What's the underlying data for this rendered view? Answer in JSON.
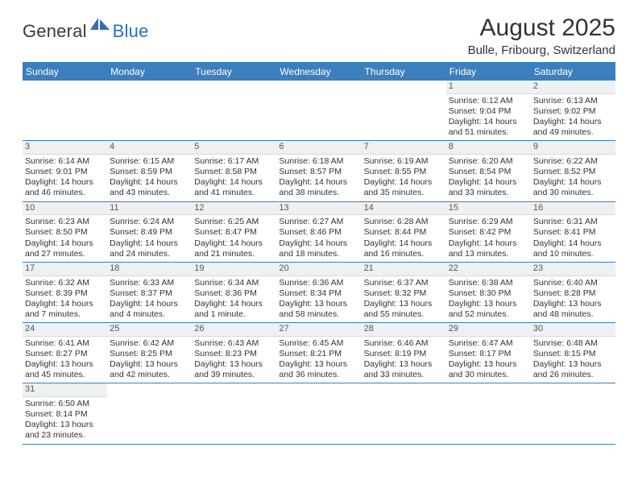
{
  "brand": {
    "general": "General",
    "blue": "Blue"
  },
  "title": "August 2025",
  "location": "Bulle, Fribourg, Switzerland",
  "colors": {
    "header_bar": "#3b7fbf",
    "brand_blue": "#2f6fb0",
    "text": "#333333",
    "daynum_bg": "#eef0f1",
    "divider": "#3b7fbf",
    "background": "#ffffff"
  },
  "weekdays": [
    "Sunday",
    "Monday",
    "Tuesday",
    "Wednesday",
    "Thursday",
    "Friday",
    "Saturday"
  ],
  "weeks": [
    [
      {
        "empty": true
      },
      {
        "empty": true
      },
      {
        "empty": true
      },
      {
        "empty": true
      },
      {
        "empty": true
      },
      {
        "day": "1",
        "sunrise": "Sunrise: 6:12 AM",
        "sunset": "Sunset: 9:04 PM",
        "daylight1": "Daylight: 14 hours",
        "daylight2": "and 51 minutes."
      },
      {
        "day": "2",
        "sunrise": "Sunrise: 6:13 AM",
        "sunset": "Sunset: 9:02 PM",
        "daylight1": "Daylight: 14 hours",
        "daylight2": "and 49 minutes."
      }
    ],
    [
      {
        "day": "3",
        "sunrise": "Sunrise: 6:14 AM",
        "sunset": "Sunset: 9:01 PM",
        "daylight1": "Daylight: 14 hours",
        "daylight2": "and 46 minutes."
      },
      {
        "day": "4",
        "sunrise": "Sunrise: 6:15 AM",
        "sunset": "Sunset: 8:59 PM",
        "daylight1": "Daylight: 14 hours",
        "daylight2": "and 43 minutes."
      },
      {
        "day": "5",
        "sunrise": "Sunrise: 6:17 AM",
        "sunset": "Sunset: 8:58 PM",
        "daylight1": "Daylight: 14 hours",
        "daylight2": "and 41 minutes."
      },
      {
        "day": "6",
        "sunrise": "Sunrise: 6:18 AM",
        "sunset": "Sunset: 8:57 PM",
        "daylight1": "Daylight: 14 hours",
        "daylight2": "and 38 minutes."
      },
      {
        "day": "7",
        "sunrise": "Sunrise: 6:19 AM",
        "sunset": "Sunset: 8:55 PM",
        "daylight1": "Daylight: 14 hours",
        "daylight2": "and 35 minutes."
      },
      {
        "day": "8",
        "sunrise": "Sunrise: 6:20 AM",
        "sunset": "Sunset: 8:54 PM",
        "daylight1": "Daylight: 14 hours",
        "daylight2": "and 33 minutes."
      },
      {
        "day": "9",
        "sunrise": "Sunrise: 6:22 AM",
        "sunset": "Sunset: 8:52 PM",
        "daylight1": "Daylight: 14 hours",
        "daylight2": "and 30 minutes."
      }
    ],
    [
      {
        "day": "10",
        "sunrise": "Sunrise: 6:23 AM",
        "sunset": "Sunset: 8:50 PM",
        "daylight1": "Daylight: 14 hours",
        "daylight2": "and 27 minutes."
      },
      {
        "day": "11",
        "sunrise": "Sunrise: 6:24 AM",
        "sunset": "Sunset: 8:49 PM",
        "daylight1": "Daylight: 14 hours",
        "daylight2": "and 24 minutes."
      },
      {
        "day": "12",
        "sunrise": "Sunrise: 6:25 AM",
        "sunset": "Sunset: 8:47 PM",
        "daylight1": "Daylight: 14 hours",
        "daylight2": "and 21 minutes."
      },
      {
        "day": "13",
        "sunrise": "Sunrise: 6:27 AM",
        "sunset": "Sunset: 8:46 PM",
        "daylight1": "Daylight: 14 hours",
        "daylight2": "and 18 minutes."
      },
      {
        "day": "14",
        "sunrise": "Sunrise: 6:28 AM",
        "sunset": "Sunset: 8:44 PM",
        "daylight1": "Daylight: 14 hours",
        "daylight2": "and 16 minutes."
      },
      {
        "day": "15",
        "sunrise": "Sunrise: 6:29 AM",
        "sunset": "Sunset: 8:42 PM",
        "daylight1": "Daylight: 14 hours",
        "daylight2": "and 13 minutes."
      },
      {
        "day": "16",
        "sunrise": "Sunrise: 6:31 AM",
        "sunset": "Sunset: 8:41 PM",
        "daylight1": "Daylight: 14 hours",
        "daylight2": "and 10 minutes."
      }
    ],
    [
      {
        "day": "17",
        "sunrise": "Sunrise: 6:32 AM",
        "sunset": "Sunset: 8:39 PM",
        "daylight1": "Daylight: 14 hours",
        "daylight2": "and 7 minutes."
      },
      {
        "day": "18",
        "sunrise": "Sunrise: 6:33 AM",
        "sunset": "Sunset: 8:37 PM",
        "daylight1": "Daylight: 14 hours",
        "daylight2": "and 4 minutes."
      },
      {
        "day": "19",
        "sunrise": "Sunrise: 6:34 AM",
        "sunset": "Sunset: 8:36 PM",
        "daylight1": "Daylight: 14 hours",
        "daylight2": "and 1 minute."
      },
      {
        "day": "20",
        "sunrise": "Sunrise: 6:36 AM",
        "sunset": "Sunset: 8:34 PM",
        "daylight1": "Daylight: 13 hours",
        "daylight2": "and 58 minutes."
      },
      {
        "day": "21",
        "sunrise": "Sunrise: 6:37 AM",
        "sunset": "Sunset: 8:32 PM",
        "daylight1": "Daylight: 13 hours",
        "daylight2": "and 55 minutes."
      },
      {
        "day": "22",
        "sunrise": "Sunrise: 6:38 AM",
        "sunset": "Sunset: 8:30 PM",
        "daylight1": "Daylight: 13 hours",
        "daylight2": "and 52 minutes."
      },
      {
        "day": "23",
        "sunrise": "Sunrise: 6:40 AM",
        "sunset": "Sunset: 8:28 PM",
        "daylight1": "Daylight: 13 hours",
        "daylight2": "and 48 minutes."
      }
    ],
    [
      {
        "day": "24",
        "sunrise": "Sunrise: 6:41 AM",
        "sunset": "Sunset: 8:27 PM",
        "daylight1": "Daylight: 13 hours",
        "daylight2": "and 45 minutes."
      },
      {
        "day": "25",
        "sunrise": "Sunrise: 6:42 AM",
        "sunset": "Sunset: 8:25 PM",
        "daylight1": "Daylight: 13 hours",
        "daylight2": "and 42 minutes."
      },
      {
        "day": "26",
        "sunrise": "Sunrise: 6:43 AM",
        "sunset": "Sunset: 8:23 PM",
        "daylight1": "Daylight: 13 hours",
        "daylight2": "and 39 minutes."
      },
      {
        "day": "27",
        "sunrise": "Sunrise: 6:45 AM",
        "sunset": "Sunset: 8:21 PM",
        "daylight1": "Daylight: 13 hours",
        "daylight2": "and 36 minutes."
      },
      {
        "day": "28",
        "sunrise": "Sunrise: 6:46 AM",
        "sunset": "Sunset: 8:19 PM",
        "daylight1": "Daylight: 13 hours",
        "daylight2": "and 33 minutes."
      },
      {
        "day": "29",
        "sunrise": "Sunrise: 6:47 AM",
        "sunset": "Sunset: 8:17 PM",
        "daylight1": "Daylight: 13 hours",
        "daylight2": "and 30 minutes."
      },
      {
        "day": "30",
        "sunrise": "Sunrise: 6:48 AM",
        "sunset": "Sunset: 8:15 PM",
        "daylight1": "Daylight: 13 hours",
        "daylight2": "and 26 minutes."
      }
    ],
    [
      {
        "day": "31",
        "sunrise": "Sunrise: 6:50 AM",
        "sunset": "Sunset: 8:14 PM",
        "daylight1": "Daylight: 13 hours",
        "daylight2": "and 23 minutes."
      },
      {
        "empty": true
      },
      {
        "empty": true
      },
      {
        "empty": true
      },
      {
        "empty": true
      },
      {
        "empty": true
      },
      {
        "empty": true
      }
    ]
  ]
}
